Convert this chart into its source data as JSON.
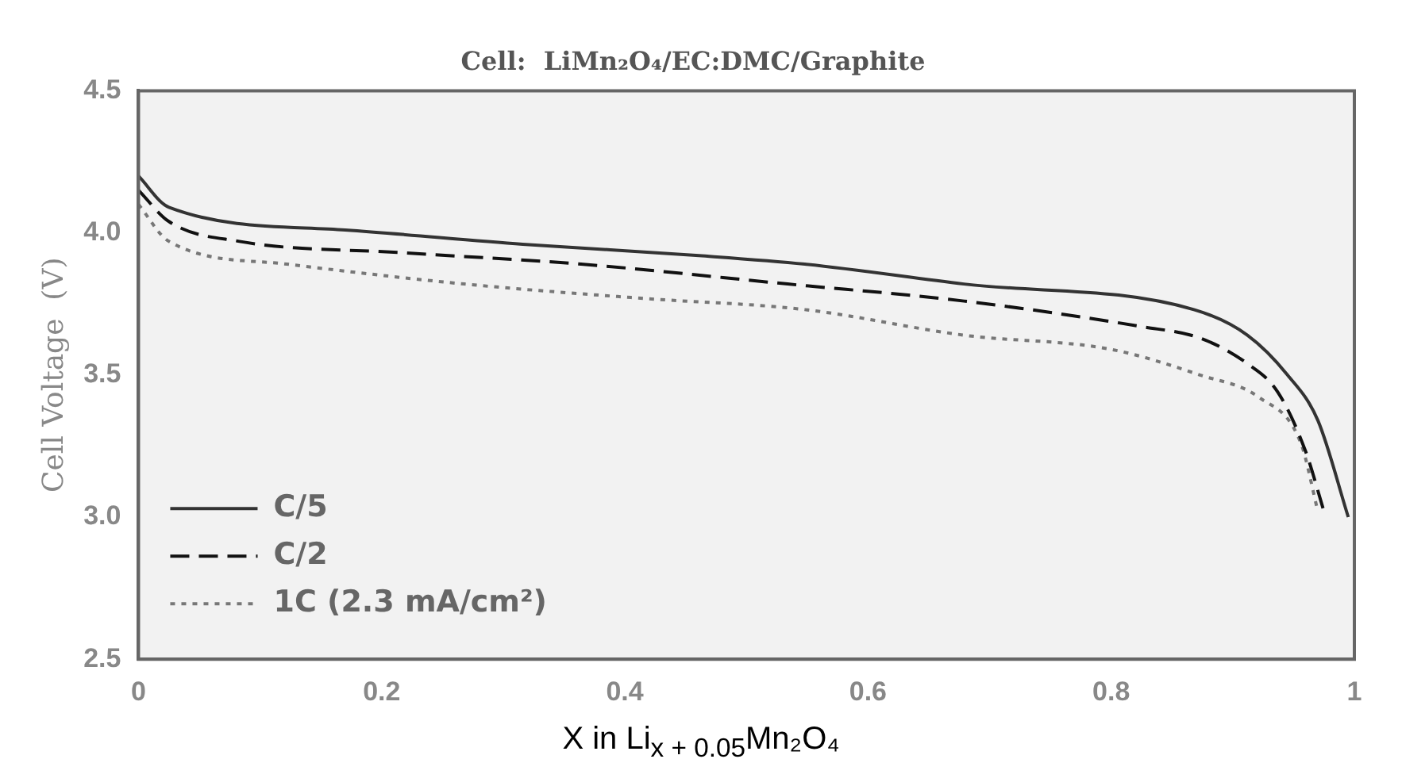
{
  "chart_data": {
    "type": "line",
    "title": "Cell:  LiMn₂O₄/EC:DMC/Graphite",
    "xlabel": "X in Li$_{x + 0.05}$Mn₂O₄",
    "ylabel": "Cell Voltage  (V)",
    "xlim": [
      0,
      1
    ],
    "xticks": [
      0,
      0.2,
      0.4,
      0.6,
      0.8,
      1
    ],
    "ylim": [
      2.5,
      4.5
    ],
    "yticks": [
      2.5,
      {
        "value": 3,
        "label": "3.0"
      },
      3.5,
      {
        "value": 4,
        "label": "4.0"
      },
      4.5
    ],
    "grid": false,
    "legend": "bottom left",
    "marker": "none",
    "series": [
      {
        "name": "C/5",
        "color": "#333333",
        "line_style": "solid",
        "x": [
          0,
          0.025,
          0.17,
          0.316,
          0.461,
          0.548,
          0.679,
          0.868,
          0.912,
          0.945,
          0.97,
          0.995
        ],
        "values": [
          4.2,
          4.09,
          4.01,
          3.96,
          3.92,
          3.89,
          3.82,
          3.73,
          3.64,
          3.5,
          3.34,
          3.0
        ]
      },
      {
        "name": "C/2",
        "color": "#111111",
        "line_style": "dashed",
        "x": [
          0,
          0.025,
          0.083,
          0.218,
          0.364,
          0.534,
          0.679,
          0.825,
          0.873,
          0.912,
          0.937,
          0.96,
          0.975
        ],
        "values": [
          4.15,
          4.04,
          3.97,
          3.93,
          3.89,
          3.82,
          3.76,
          3.67,
          3.63,
          3.54,
          3.44,
          3.23,
          3.02
        ]
      },
      {
        "name": "1C (2.3 mA/cm²)",
        "color": "#777777",
        "line_style": "dotted",
        "x": [
          0,
          0.025,
          0.122,
          0.268,
          0.413,
          0.548,
          0.679,
          0.8,
          0.873,
          0.922,
          0.956,
          0.97
        ],
        "values": [
          4.1,
          3.97,
          3.89,
          3.82,
          3.77,
          3.73,
          3.64,
          3.59,
          3.5,
          3.42,
          3.26,
          3.02
        ]
      }
    ]
  }
}
